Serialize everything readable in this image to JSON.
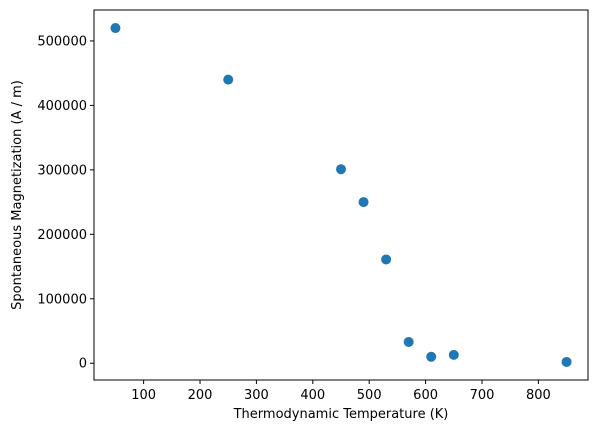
{
  "chart_data": {
    "type": "scatter",
    "title": "",
    "xlabel": "Thermodynamic Temperature (K)",
    "ylabel": "Spontaneous Magnetization (A / m)",
    "xlim": [
      12,
      888
    ],
    "ylim": [
      -26000,
      548000
    ],
    "x_ticks": [
      100,
      200,
      300,
      400,
      500,
      600,
      700,
      800
    ],
    "x_tick_labels": [
      "100",
      "200",
      "300",
      "400",
      "500",
      "600",
      "700",
      "800"
    ],
    "y_ticks": [
      0,
      100000,
      200000,
      300000,
      400000,
      500000
    ],
    "y_tick_labels": [
      "0",
      "100000",
      "200000",
      "300000",
      "400000",
      "500000"
    ],
    "grid": false,
    "legend": "none",
    "marker_color": "#1f77b4",
    "points": [
      {
        "x": 50,
        "y": 520000
      },
      {
        "x": 250,
        "y": 440000
      },
      {
        "x": 450,
        "y": 301000
      },
      {
        "x": 490,
        "y": 250000
      },
      {
        "x": 530,
        "y": 161000
      },
      {
        "x": 570,
        "y": 33000
      },
      {
        "x": 610,
        "y": 10000
      },
      {
        "x": 650,
        "y": 13000
      },
      {
        "x": 850,
        "y": 2000
      }
    ]
  }
}
